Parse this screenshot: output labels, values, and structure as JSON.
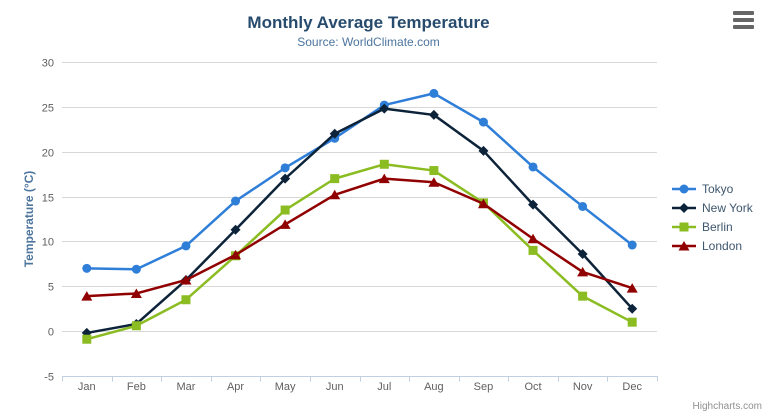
{
  "title": "Monthly Average Temperature",
  "subtitle": "Source: WorldClimate.com",
  "credits": "Highcharts.com",
  "export_menu_icon": "hamburger-icon",
  "colors": {
    "title_text": "#274b6d",
    "subtitle_text": "#4d759e",
    "axis_title_text": "#4d759e",
    "axis_label_text": "#606060",
    "gridline": "#d8d8d8",
    "axis_line": "#c0d0e0",
    "legend_text": "#3e576f",
    "credits_text": "#909090"
  },
  "chart_data": {
    "type": "line",
    "title": "Monthly Average Temperature",
    "subtitle": "Source: WorldClimate.com",
    "xlabel": "",
    "ylabel": "Temperature (°C)",
    "categories": [
      "Jan",
      "Feb",
      "Mar",
      "Apr",
      "May",
      "Jun",
      "Jul",
      "Aug",
      "Sep",
      "Oct",
      "Nov",
      "Dec"
    ],
    "ylim": [
      -5,
      30
    ],
    "ytick_interval": 5,
    "grid": "horizontal-only",
    "legend_position": "right",
    "series": [
      {
        "name": "Tokyo",
        "color": "#2f7ed8",
        "marker": "circle",
        "values": [
          7.0,
          6.9,
          9.5,
          14.5,
          18.2,
          21.5,
          25.2,
          26.5,
          23.3,
          18.3,
          13.9,
          9.6
        ]
      },
      {
        "name": "New York",
        "color": "#0d233a",
        "marker": "diamond",
        "values": [
          -0.2,
          0.8,
          5.7,
          11.3,
          17.0,
          22.0,
          24.8,
          24.1,
          20.1,
          14.1,
          8.6,
          2.5
        ]
      },
      {
        "name": "Berlin",
        "color": "#8bbc21",
        "marker": "square",
        "values": [
          -0.9,
          0.6,
          3.5,
          8.4,
          13.5,
          17.0,
          18.6,
          17.9,
          14.3,
          9.0,
          3.9,
          1.0
        ]
      },
      {
        "name": "London",
        "color": "#910000",
        "marker": "triangle",
        "values": [
          3.9,
          4.2,
          5.7,
          8.5,
          11.9,
          15.2,
          17.0,
          16.6,
          14.2,
          10.3,
          6.6,
          4.8
        ]
      }
    ]
  }
}
